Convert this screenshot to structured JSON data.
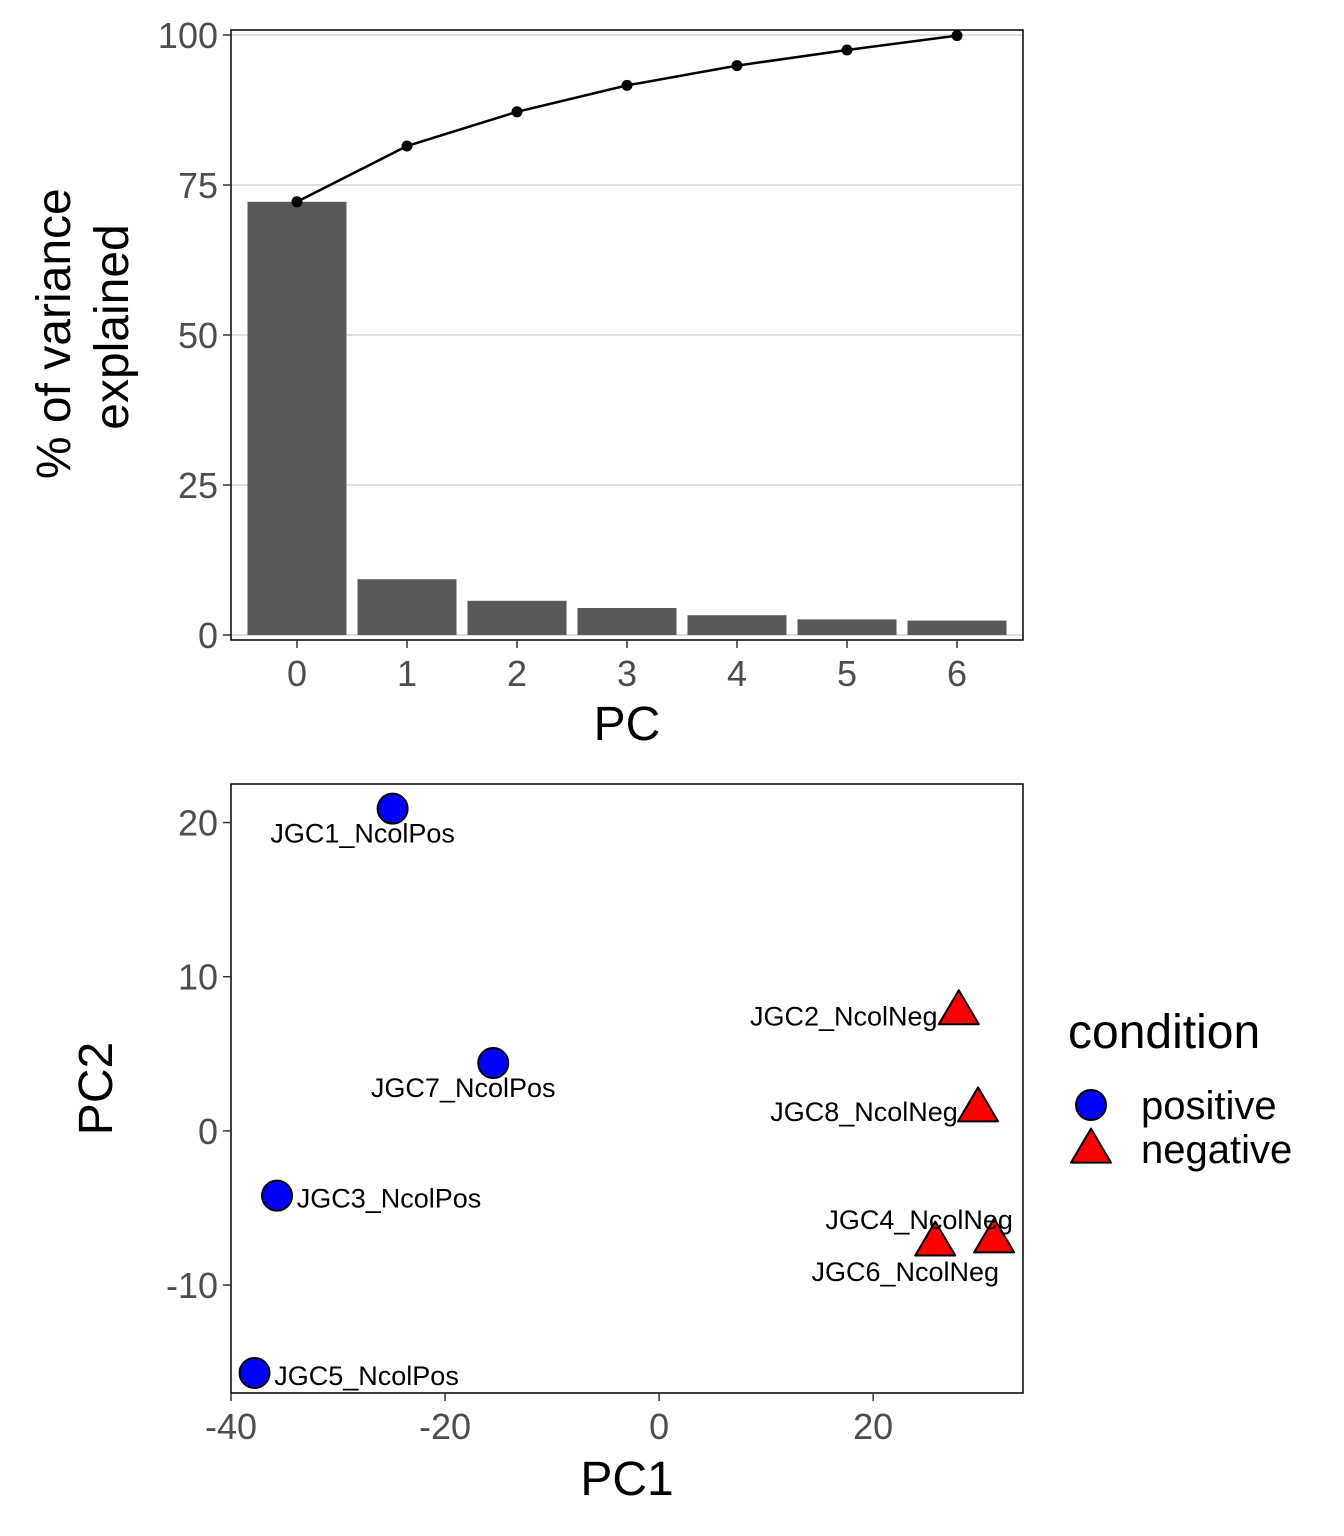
{
  "chart_data": [
    {
      "type": "bar",
      "xlabel": "PC",
      "ylabel_lines": [
        "% of variance",
        "explained"
      ],
      "categories": [
        "0",
        "1",
        "2",
        "3",
        "4",
        "5",
        "6"
      ],
      "values": [
        72.2,
        9.3,
        5.7,
        4.5,
        3.3,
        2.6,
        2.4
      ],
      "cumulative": [
        72.2,
        81.5,
        87.2,
        91.6,
        94.9,
        97.5,
        99.9
      ],
      "ylim": [
        0,
        100
      ],
      "yticks": [
        0,
        25,
        50,
        75,
        100
      ],
      "bar_color": "#595959",
      "line_color": "#000000",
      "grid": "horizontal"
    },
    {
      "type": "scatter",
      "xlabel": "PC1",
      "ylabel": "PC2",
      "xlim": [
        -40,
        34
      ],
      "ylim": [
        -17,
        22.5
      ],
      "xticks": [
        -40,
        -20,
        0,
        20
      ],
      "yticks": [
        -10,
        0,
        10,
        20
      ],
      "grid": "none",
      "legend": {
        "title": "condition",
        "position": "right",
        "entries": [
          {
            "label": "positive",
            "shape": "circle",
            "color": "#0000ff"
          },
          {
            "label": "negative",
            "shape": "triangle",
            "color": "#ff0000"
          }
        ]
      },
      "points": [
        {
          "label": "JGC1_NcolPos",
          "x": -24.9,
          "y": 20.9,
          "condition": "positive"
        },
        {
          "label": "JGC7_NcolPos",
          "x": -15.5,
          "y": 4.4,
          "condition": "positive"
        },
        {
          "label": "JGC3_NcolPos",
          "x": -35.7,
          "y": -4.2,
          "condition": "positive"
        },
        {
          "label": "JGC5_NcolPos",
          "x": -37.8,
          "y": -15.7,
          "condition": "positive"
        },
        {
          "label": "JGC2_NcolNeg",
          "x": 28.0,
          "y": 7.8,
          "condition": "negative"
        },
        {
          "label": "JGC8_NcolNeg",
          "x": 29.8,
          "y": 1.5,
          "condition": "negative"
        },
        {
          "label": "JGC4_NcolNeg",
          "x": 31.3,
          "y": -7.0,
          "condition": "negative"
        },
        {
          "label": "JGC6_NcolNeg",
          "x": 25.8,
          "y": -7.2,
          "condition": "negative"
        }
      ]
    }
  ]
}
